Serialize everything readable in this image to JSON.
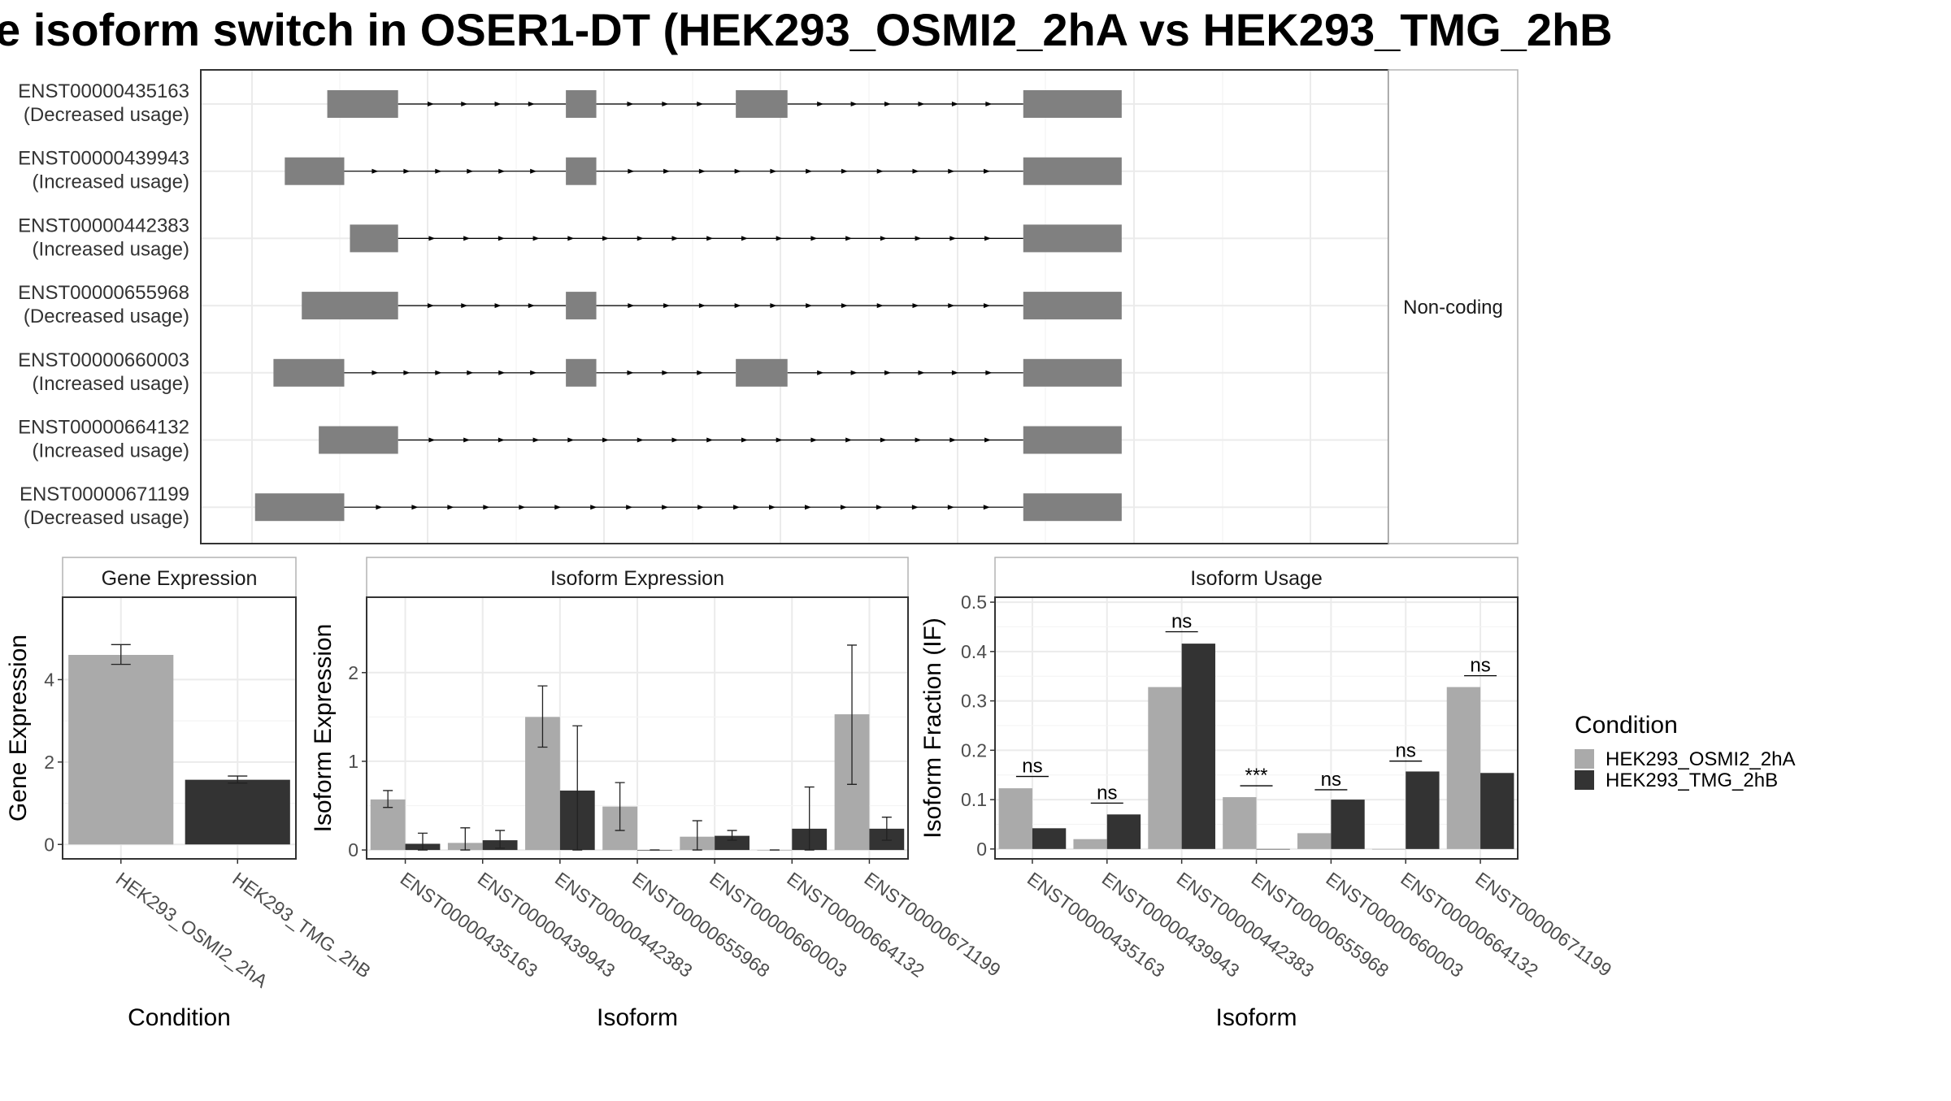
{
  "title": "e isoform switch in OSER1-DT (HEK293_OSMI2_2hA vs HEK293_TMG_2hB",
  "colors": {
    "cond1": "#aaaaaa",
    "cond2": "#333333",
    "exon": "#808080",
    "grid": "#ebebeb",
    "panel_border": "#333333"
  },
  "chart_data": [
    {
      "type": "transcript_structure",
      "category_label": "Non-coding",
      "xlim": [
        0,
        1000
      ],
      "transcripts": [
        {
          "id": "ENST00000435163",
          "usage": "(Decreased usage)",
          "exons": [
            [
              104,
              204
            ],
            [
              441,
              484
            ],
            [
              681,
              754
            ],
            [
              1087,
              1226
            ]
          ]
        },
        {
          "id": "ENST00000439943",
          "usage": "(Increased usage)",
          "exons": [
            [
              44,
              128
            ],
            [
              441,
              484
            ],
            [
              1087,
              1226
            ]
          ]
        },
        {
          "id": "ENST00000442383",
          "usage": "(Increased usage)",
          "exons": [
            [
              136,
              204
            ],
            [
              1087,
              1226
            ]
          ]
        },
        {
          "id": "ENST00000655968",
          "usage": "(Decreased usage)",
          "exons": [
            [
              68,
              204
            ],
            [
              441,
              484
            ],
            [
              1087,
              1226
            ]
          ]
        },
        {
          "id": "ENST00000660003",
          "usage": "(Increased usage)",
          "exons": [
            [
              28,
              128
            ],
            [
              441,
              484
            ],
            [
              681,
              754
            ],
            [
              1087,
              1226
            ]
          ]
        },
        {
          "id": "ENST00000664132",
          "usage": "(Increased usage)",
          "exons": [
            [
              92,
              204
            ],
            [
              1087,
              1226
            ]
          ]
        },
        {
          "id": "ENST00000671199",
          "usage": "(Decreased usage)",
          "exons": [
            [
              2,
              128
            ],
            [
              1087,
              1226
            ]
          ]
        }
      ]
    },
    {
      "type": "bar",
      "title": "Gene Expression",
      "xlabel": "Condition",
      "ylabel": "Gene Expression",
      "ylim": [
        -0.35,
        6.0
      ],
      "yticks": [
        0,
        2,
        4
      ],
      "categories": [
        "HEK293_OSMI2_2hA",
        "HEK293_TMG_2hB"
      ],
      "values": [
        4.6,
        1.57
      ],
      "errors": [
        [
          4.37,
          4.85
        ],
        [
          1.49,
          1.66
        ]
      ]
    },
    {
      "type": "bar",
      "title": "Isoform Expression",
      "xlabel": "Isoform",
      "ylabel": "Isoform Expression",
      "ylim": [
        -0.1,
        2.85
      ],
      "yticks": [
        0,
        1,
        2
      ],
      "categories": [
        "ENST00000435163",
        "ENST00000439943",
        "ENST00000442383",
        "ENST00000655968",
        "ENST00000660003",
        "ENST00000664132",
        "ENST00000671199"
      ],
      "series": [
        {
          "name": "HEK293_OSMI2_2hA",
          "values": [
            0.57,
            0.08,
            1.5,
            0.49,
            0.15,
            0.0,
            1.53
          ],
          "errors": [
            [
              0.48,
              0.67
            ],
            [
              0.0,
              0.25
            ],
            [
              1.16,
              1.85
            ],
            [
              0.22,
              0.76
            ],
            [
              0.0,
              0.33
            ],
            [
              0.0,
              0.0
            ],
            [
              0.74,
              2.31
            ]
          ]
        },
        {
          "name": "HEK293_TMG_2hB",
          "values": [
            0.07,
            0.11,
            0.67,
            0.0,
            0.16,
            0.24,
            0.24
          ],
          "errors": [
            [
              0.0,
              0.19
            ],
            [
              0.02,
              0.22
            ],
            [
              0.0,
              1.4
            ],
            [
              0.0,
              0.0
            ],
            [
              0.11,
              0.22
            ],
            [
              0.0,
              0.71
            ],
            [
              0.11,
              0.37
            ]
          ]
        }
      ]
    },
    {
      "type": "bar",
      "title": "Isoform Usage",
      "xlabel": "Isoform",
      "ylabel": "Isoform Fraction (IF)",
      "ylim": [
        -0.02,
        0.51
      ],
      "yticks": [
        0.0,
        0.1,
        0.2,
        0.3,
        0.4,
        0.5
      ],
      "categories": [
        "ENST00000435163",
        "ENST00000439943",
        "ENST00000442383",
        "ENST00000655968",
        "ENST00000660003",
        "ENST00000664132",
        "ENST00000671199"
      ],
      "series": [
        {
          "name": "HEK293_OSMI2_2hA",
          "values": [
            0.123,
            0.02,
            0.328,
            0.105,
            0.032,
            0.0,
            0.328
          ]
        },
        {
          "name": "HEK293_TMG_2hB",
          "values": [
            0.042,
            0.07,
            0.416,
            0.0,
            0.1,
            0.157,
            0.154
          ]
        }
      ],
      "significance": [
        "ns",
        "ns",
        "ns",
        "***",
        "ns",
        "ns",
        "ns"
      ],
      "sig_y": [
        0.147,
        0.093,
        0.44,
        0.128,
        0.12,
        0.178,
        0.351
      ]
    }
  ],
  "legend": {
    "title": "Condition",
    "items": [
      "HEK293_OSMI2_2hA",
      "HEK293_TMG_2hB"
    ]
  }
}
